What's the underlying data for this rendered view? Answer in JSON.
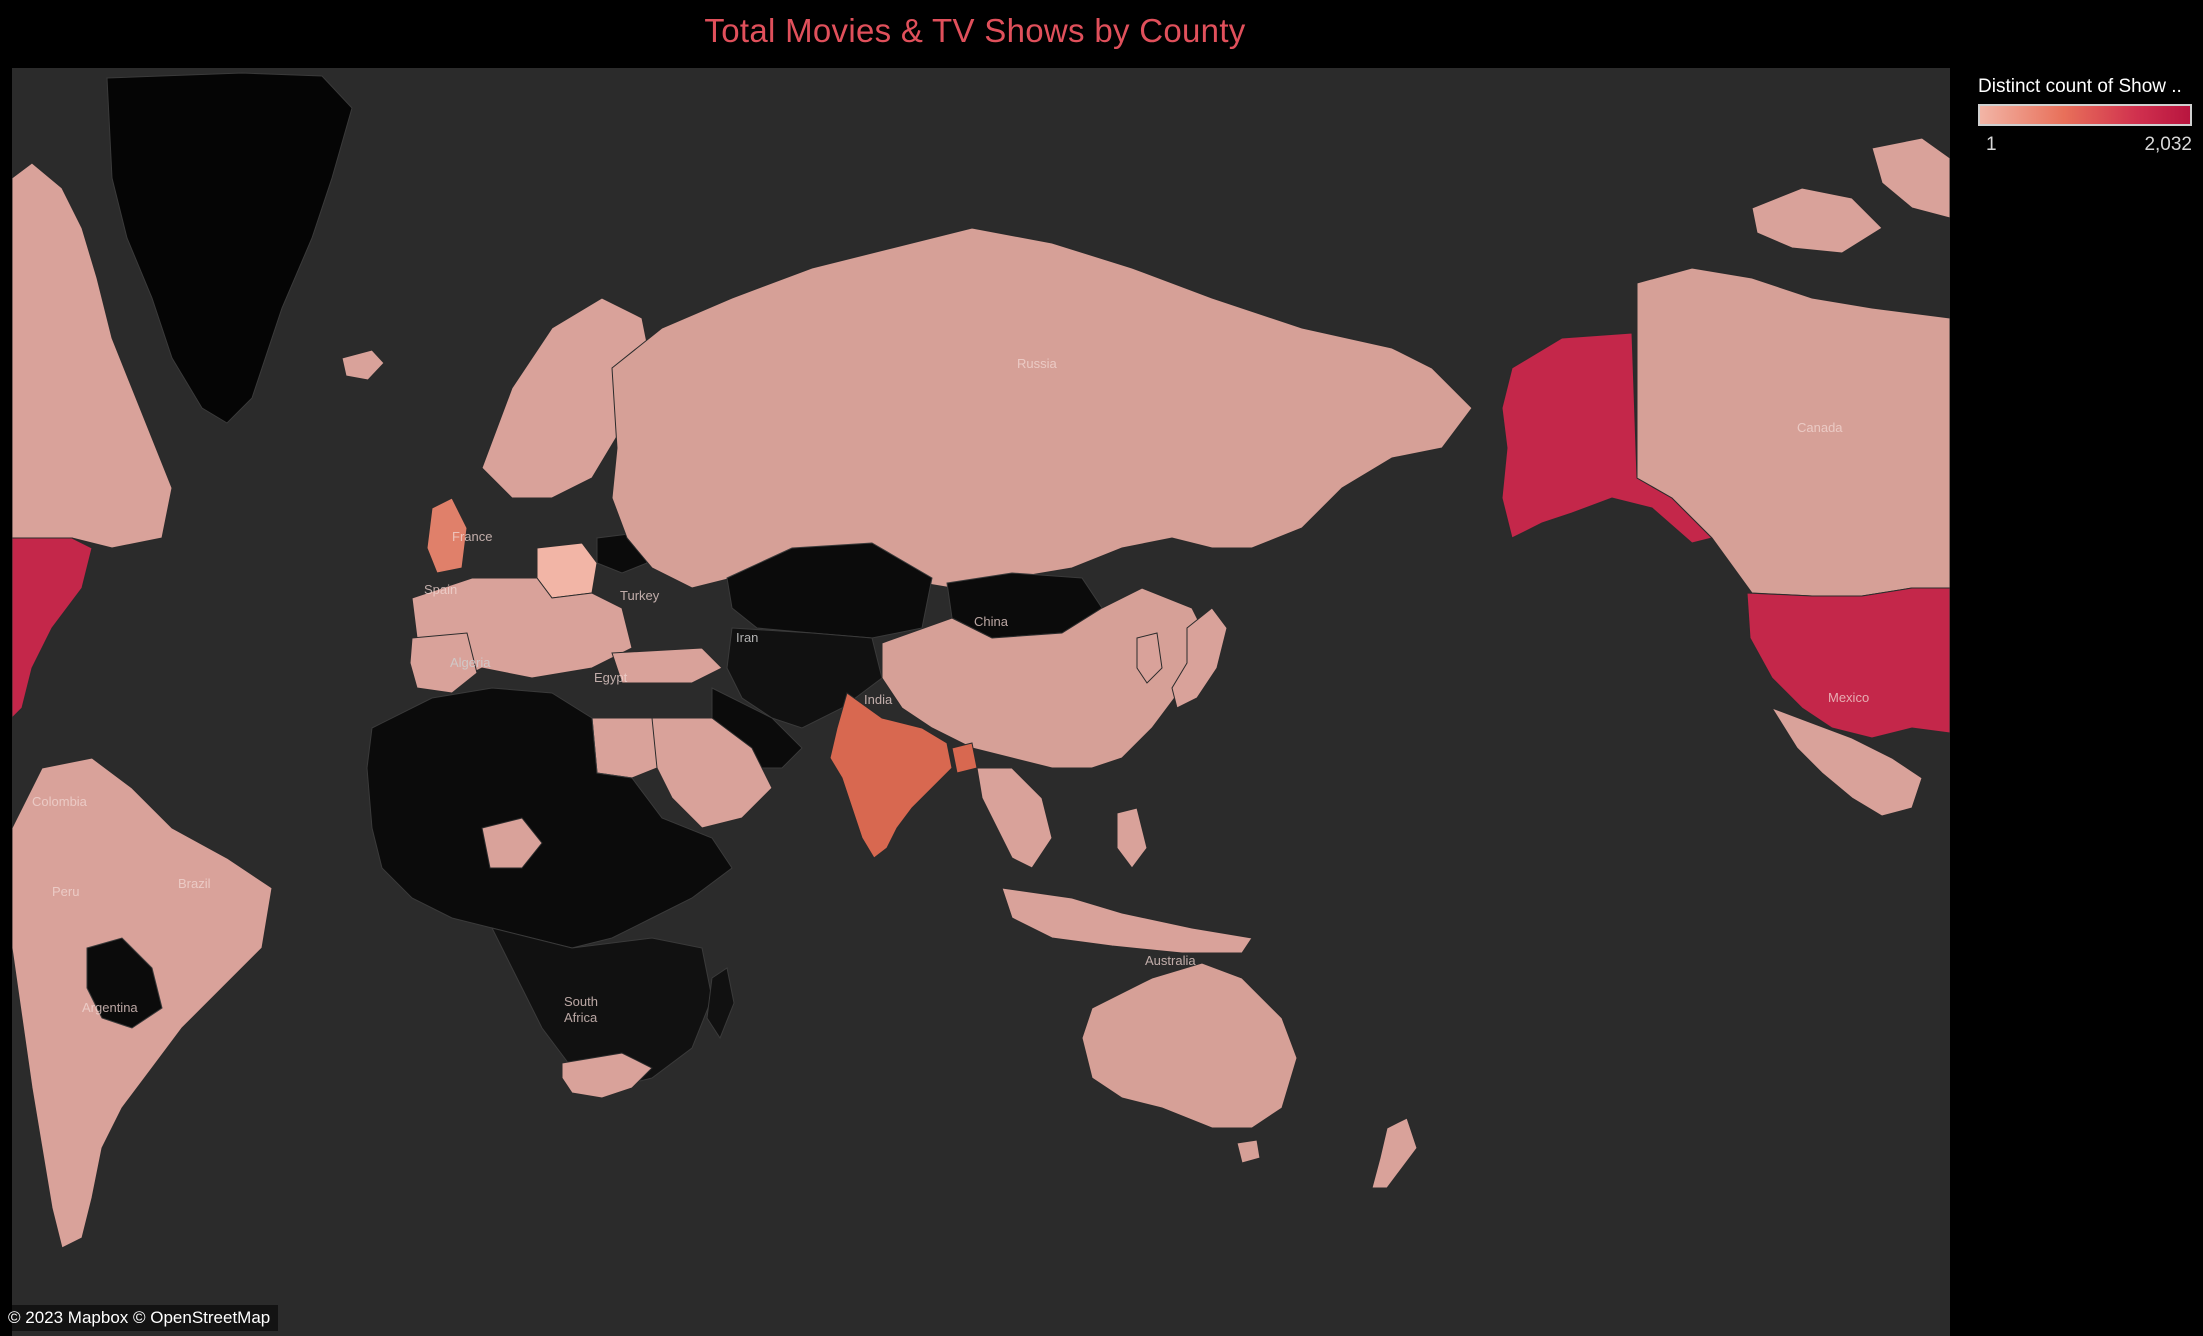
{
  "title": "Total Movies & TV Shows by County",
  "legend": {
    "title": "Distinct count of Show ..",
    "min_label": "1",
    "max_label": "2,032",
    "min_value": 1,
    "max_value": 2032,
    "color_low": "#f2b5a6",
    "color_high": "#b8153f"
  },
  "attribution": "© 2023 Mapbox © OpenStreetMap",
  "colors": {
    "background": "#000000",
    "ocean": "#2b2b2b",
    "no_data": "#111111",
    "title": "#e0505b"
  },
  "country_labels": {
    "russia": "Russia",
    "canada": "Canada",
    "china": "China",
    "india": "India",
    "iran": "Iran",
    "algeria": "Algeria",
    "egypt": "Egypt",
    "turkey": "Turkey",
    "france": "France",
    "spain": "Spain",
    "brazil": "Brazil",
    "peru": "Peru",
    "colombia": "Colombia",
    "argentina": "Argentina",
    "south_africa_1": "South",
    "south_africa_2": "Africa",
    "australia": "Australia",
    "mexico": "Mexico"
  }
}
